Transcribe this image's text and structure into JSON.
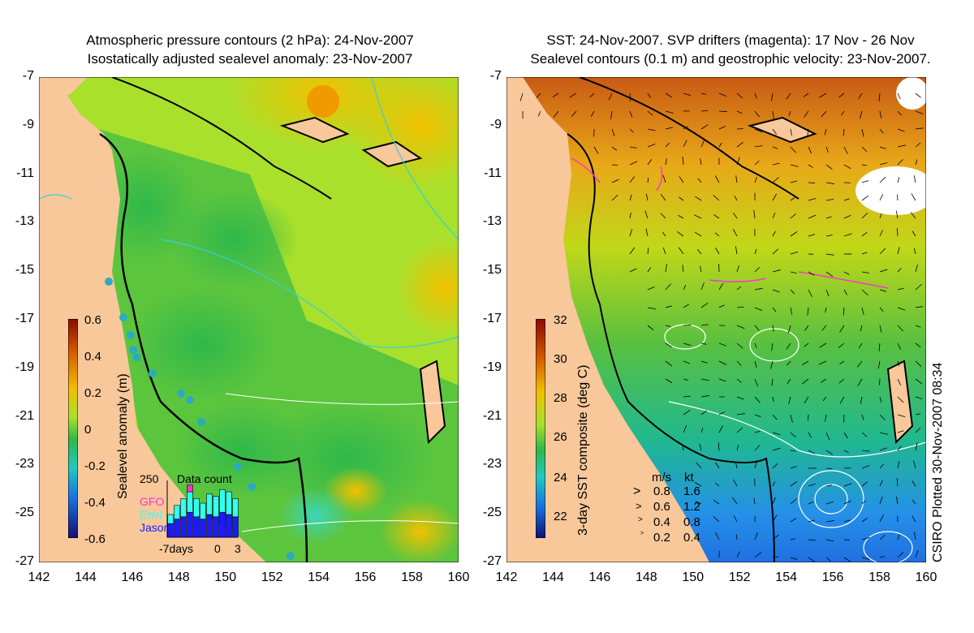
{
  "left_panel": {
    "title_line1": "Atmospheric pressure contours (2 hPa): 24-Nov-2007",
    "title_line2": "Isostatically adjusted sealevel anomaly: 23-Nov-2007",
    "colorbar": {
      "label": "Sealevel anomaly (m)",
      "ticks": [
        "0.6",
        "0.4",
        "0.2",
        "0",
        "-0.2",
        "-0.4",
        "-0.6"
      ]
    },
    "inset": {
      "title": "Data count",
      "ymax_label": "250",
      "legend": [
        {
          "name": "GFO",
          "color": "#ff33cc"
        },
        {
          "name": "Envi",
          "color": "#33ffee"
        },
        {
          "name": "Jason",
          "color": "#1a1aff"
        }
      ],
      "x_labels": [
        "-7days",
        "0",
        "3"
      ]
    }
  },
  "right_panel": {
    "title_line1": "SST: 24-Nov-2007. SVP drifters (magenta): 17 Nov - 26 Nov",
    "title_line2": "Sealevel contours (0.1 m) and geostrophic velocity: 23-Nov-2007.",
    "colorbar": {
      "label": "3-day SST composite (deg C)",
      "ticks": [
        "32",
        "30",
        "28",
        "26",
        "24",
        "22"
      ]
    },
    "speed_legend": {
      "header_ms": "m/s",
      "header_kt": "kt",
      "rows": [
        {
          "ms": "0.8",
          "kt": "1.6"
        },
        {
          "ms": "0.6",
          "kt": "1.2"
        },
        {
          "ms": "0.4",
          "kt": "0.8"
        },
        {
          "ms": "0.2",
          "kt": "0.4"
        }
      ]
    }
  },
  "credit": "CSIRO Plotted 30-Nov-2007 08:34",
  "chart_data": [
    {
      "type": "heatmap",
      "title": "Atmospheric pressure contours (2 hPa): 24-Nov-2007 / Isostatically adjusted sealevel anomaly: 23-Nov-2007",
      "x_ticks": [
        "142",
        "144",
        "146",
        "148",
        "150",
        "152",
        "154",
        "156",
        "158",
        "160"
      ],
      "y_ticks": [
        "-7",
        "-9",
        "-11",
        "-13",
        "-15",
        "-17",
        "-19",
        "-21",
        "-23",
        "-25",
        "-27"
      ],
      "xlim": [
        142,
        160
      ],
      "ylim": [
        -27,
        -7
      ],
      "color_range": [
        -0.6,
        0.6
      ],
      "colorbar_label": "Sealevel anomaly (m)",
      "inset": {
        "type": "bar",
        "title": "Data count",
        "ylim": [
          0,
          250
        ],
        "days": [
          -7,
          -6,
          -5,
          -4,
          -3,
          -2,
          -1,
          0,
          1,
          2,
          3
        ],
        "series": [
          {
            "name": "Jason",
            "color": "#1a1aff",
            "values": [
              60,
              80,
              90,
              110,
              90,
              80,
              100,
              90,
              110,
              100,
              90
            ]
          },
          {
            "name": "Envi",
            "color": "#33ffee",
            "values": [
              40,
              60,
              80,
              90,
              80,
              70,
              90,
              90,
              100,
              100,
              80
            ]
          },
          {
            "name": "GFO",
            "color": "#ff33cc",
            "values": [
              0,
              0,
              0,
              30,
              0,
              0,
              0,
              0,
              0,
              0,
              0
            ]
          }
        ]
      }
    },
    {
      "type": "heatmap",
      "title": "SST: 24-Nov-2007. SVP drifters (magenta): 17 Nov - 26 Nov / Sealevel contours (0.1 m) and geostrophic velocity: 23-Nov-2007.",
      "x_ticks": [
        "142",
        "144",
        "146",
        "148",
        "150",
        "152",
        "154",
        "156",
        "158",
        "160"
      ],
      "y_ticks": [
        "-7",
        "-9",
        "-11",
        "-13",
        "-15",
        "-17",
        "-19",
        "-21",
        "-23",
        "-25",
        "-27"
      ],
      "xlim": [
        142,
        160
      ],
      "ylim": [
        -27,
        -7
      ],
      "color_range": [
        21,
        32
      ],
      "colorbar_label": "3-day SST composite (deg C)"
    }
  ]
}
